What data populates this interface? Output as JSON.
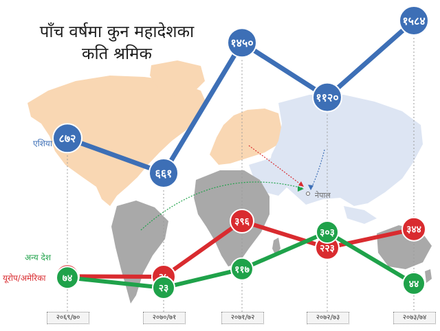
{
  "title_lines": [
    "पाँच वर्षमा कुन महादेशका",
    "कति श्रमिक"
  ],
  "map_label": "नेपाल",
  "chart_data": {
    "type": "line",
    "title": "पाँच वर्षमा कुन महादेशका कति श्रमिक",
    "categories": [
      "२०६९/७०",
      "२०७०/७१",
      "२०७१/७२",
      "२०७२/७३",
      "२०७३/७४"
    ],
    "series": [
      {
        "name": "एशिया",
        "color": "#3d6fb6",
        "values": [
          872,
          661,
          1450,
          1120,
          1584
        ],
        "labels": [
          "८७२",
          "६६१",
          "१४५०",
          "११२०",
          "१५८४"
        ]
      },
      {
        "name": "अन्य देश",
        "color": "#1fa24a",
        "values": [
          74,
          23,
          117,
          303,
          44
        ],
        "labels": [
          "७४",
          "२३",
          "११७",
          "३०३",
          "४४"
        ]
      },
      {
        "name": "यूरोप/अमेरिका",
        "color": "#d92b2f",
        "values": [
          38,
          35,
          396,
          223,
          344
        ],
        "labels": [
          "३८",
          "३५",
          "३९६",
          "२२३",
          "३४४"
        ]
      }
    ]
  }
}
